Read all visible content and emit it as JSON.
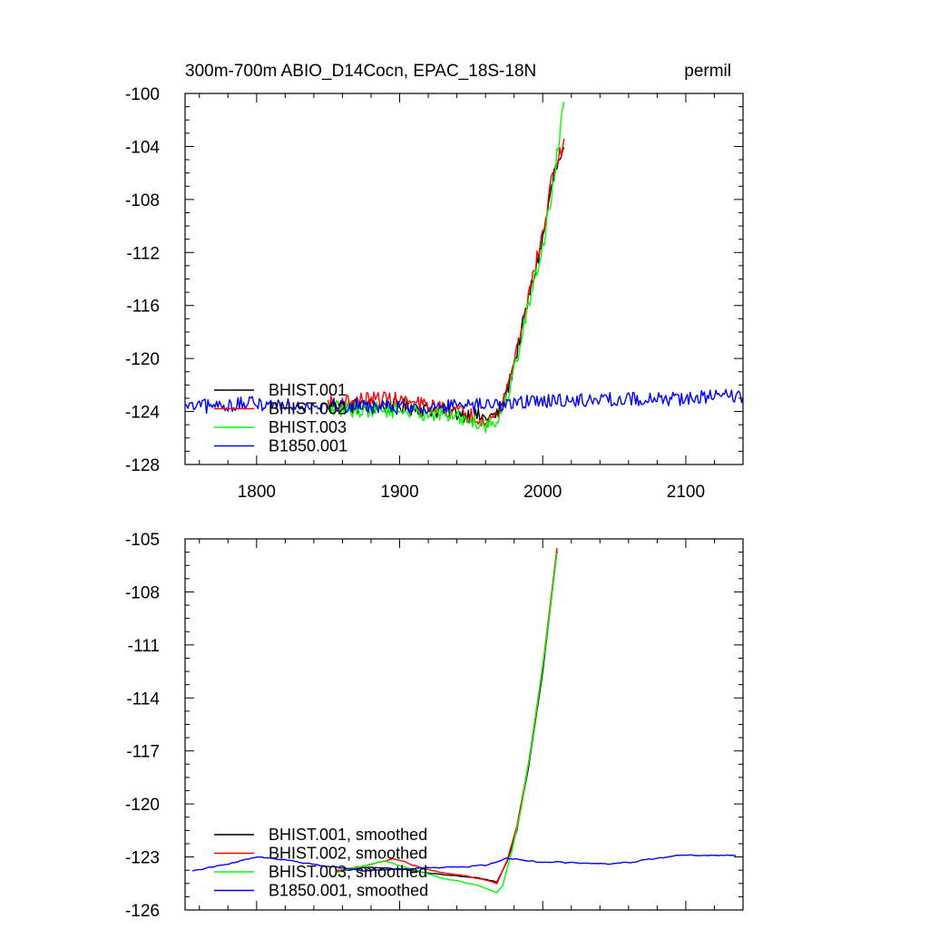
{
  "chart_data": [
    {
      "type": "line",
      "title": "300m-700m ABIO_D14Cocn, EPAC_18S-18N",
      "units": "permil",
      "xlabel": "",
      "ylabel": "",
      "xlim": [
        1750,
        2140
      ],
      "ylim": [
        -128,
        -100
      ],
      "xticks": [
        1800,
        1900,
        2000,
        2100
      ],
      "yticks": [
        -100,
        -104,
        -108,
        -112,
        -116,
        -120,
        -124,
        -128
      ],
      "xtick_labels": [
        "1800",
        "1900",
        "2000",
        "2100"
      ],
      "ytick_labels": [
        "-100",
        "-104",
        "-108",
        "-112",
        "-116",
        "-120",
        "-124",
        "-128"
      ],
      "grid": false,
      "legend_position": "lower-left",
      "series": [
        {
          "name": "BHIST.001",
          "color": "#000000",
          "x_range": [
            1850,
            2015
          ],
          "keyframes": [
            [
              1850,
              -123.6
            ],
            [
              1900,
              -123.6
            ],
            [
              1940,
              -124.1
            ],
            [
              1960,
              -124.5
            ],
            [
              1968,
              -124.3
            ],
            [
              1975,
              -122.5
            ],
            [
              1982,
              -119.5
            ],
            [
              1990,
              -115.5
            ],
            [
              2000,
              -111.0
            ],
            [
              2008,
              -106.0
            ],
            [
              2015,
              -104.5
            ]
          ],
          "noise": 0.6
        },
        {
          "name": "BHIST.002",
          "color": "#ff0000",
          "x_range": [
            1850,
            2015
          ],
          "keyframes": [
            [
              1850,
              -123.4
            ],
            [
              1890,
              -123.0
            ],
            [
              1900,
              -123.2
            ],
            [
              1940,
              -124.0
            ],
            [
              1960,
              -124.6
            ],
            [
              1968,
              -124.4
            ],
            [
              1975,
              -122.3
            ],
            [
              1982,
              -119.2
            ],
            [
              1990,
              -115.3
            ],
            [
              2000,
              -110.6
            ],
            [
              2008,
              -105.5
            ],
            [
              2015,
              -104.0
            ]
          ],
          "noise": 0.6
        },
        {
          "name": "BHIST.003",
          "color": "#00ff00",
          "x_range": [
            1850,
            2015
          ],
          "keyframes": [
            [
              1850,
              -123.8
            ],
            [
              1900,
              -123.9
            ],
            [
              1940,
              -124.4
            ],
            [
              1960,
              -125.0
            ],
            [
              1968,
              -124.8
            ],
            [
              1975,
              -123.0
            ],
            [
              1982,
              -120.0
            ],
            [
              1990,
              -116.0
            ],
            [
              2000,
              -111.5
            ],
            [
              2008,
              -106.5
            ],
            [
              2015,
              -100.2
            ]
          ],
          "noise": 0.6
        },
        {
          "name": "B1850.001",
          "color": "#0000ff",
          "x_range": [
            1750,
            2140
          ],
          "keyframes": [
            [
              1750,
              -123.7
            ],
            [
              1800,
              -123.4
            ],
            [
              1850,
              -123.5
            ],
            [
              1900,
              -123.7
            ],
            [
              1950,
              -123.6
            ],
            [
              2000,
              -123.2
            ],
            [
              2050,
              -123.1
            ],
            [
              2100,
              -123.0
            ],
            [
              2140,
              -122.8
            ]
          ],
          "noise": 0.55
        }
      ]
    },
    {
      "type": "line",
      "title": "",
      "xlabel": "",
      "ylabel": "",
      "xlim": [
        1750,
        2140
      ],
      "ylim": [
        -126,
        -105
      ],
      "xticks": [
        1800,
        1900,
        2000,
        2100
      ],
      "yticks": [
        -105,
        -108,
        -111,
        -114,
        -117,
        -120,
        -123,
        -126
      ],
      "ytick_labels": [
        "-105",
        "-108",
        "-111",
        "-114",
        "-117",
        "-120",
        "-123",
        "-126"
      ],
      "grid": false,
      "legend_position": "lower-left",
      "series": [
        {
          "name": "BHIST.001, smoothed",
          "color": "#000000",
          "x_range": [
            1855,
            2010
          ],
          "keyframes": [
            [
              1855,
              -123.8
            ],
            [
              1880,
              -123.6
            ],
            [
              1900,
              -123.7
            ],
            [
              1930,
              -124.0
            ],
            [
              1955,
              -124.2
            ],
            [
              1968,
              -124.4
            ],
            [
              1975,
              -123.3
            ],
            [
              1982,
              -121.5
            ],
            [
              1990,
              -118.0
            ],
            [
              2000,
              -112.5
            ],
            [
              2010,
              -105.7
            ]
          ],
          "noise": 0.06
        },
        {
          "name": "BHIST.002, smoothed",
          "color": "#ff0000",
          "x_range": [
            1855,
            2010
          ],
          "keyframes": [
            [
              1855,
              -123.8
            ],
            [
              1880,
              -123.4
            ],
            [
              1895,
              -123.1
            ],
            [
              1910,
              -123.5
            ],
            [
              1930,
              -123.9
            ],
            [
              1955,
              -124.2
            ],
            [
              1968,
              -124.5
            ],
            [
              1975,
              -123.2
            ],
            [
              1982,
              -121.2
            ],
            [
              1990,
              -117.7
            ],
            [
              2000,
              -112.2
            ],
            [
              2010,
              -105.5
            ]
          ],
          "noise": 0.06
        },
        {
          "name": "BHIST.003, smoothed",
          "color": "#00ff00",
          "x_range": [
            1855,
            2010
          ],
          "keyframes": [
            [
              1855,
              -123.9
            ],
            [
              1880,
              -123.4
            ],
            [
              1890,
              -123.2
            ],
            [
              1905,
              -123.6
            ],
            [
              1930,
              -124.2
            ],
            [
              1955,
              -124.6
            ],
            [
              1968,
              -125.0
            ],
            [
              1972,
              -124.6
            ],
            [
              1978,
              -122.8
            ],
            [
              1985,
              -120.2
            ],
            [
              1993,
              -116.2
            ],
            [
              2002,
              -111.0
            ],
            [
              2010,
              -105.8
            ]
          ],
          "noise": 0.06
        },
        {
          "name": "B1850.001, smoothed",
          "color": "#0000ff",
          "x_range": [
            1755,
            2135
          ],
          "keyframes": [
            [
              1755,
              -123.8
            ],
            [
              1780,
              -123.4
            ],
            [
              1800,
              -123.0
            ],
            [
              1825,
              -123.2
            ],
            [
              1850,
              -123.5
            ],
            [
              1875,
              -123.8
            ],
            [
              1900,
              -123.7
            ],
            [
              1930,
              -123.6
            ],
            [
              1960,
              -123.5
            ],
            [
              1975,
              -123.1
            ],
            [
              2000,
              -123.3
            ],
            [
              2050,
              -123.4
            ],
            [
              2080,
              -123.1
            ],
            [
              2100,
              -122.9
            ],
            [
              2135,
              -122.9
            ]
          ],
          "noise": 0.08
        }
      ]
    }
  ]
}
